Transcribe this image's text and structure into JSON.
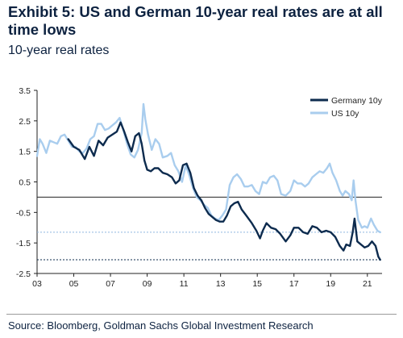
{
  "header": {
    "title": "Exhibit 5: US and German 10-year real rates are at all time lows",
    "subtitle": "10-year real rates"
  },
  "footer": {
    "source": "Source: Bloomberg, Goldman Sachs Global Investment Research"
  },
  "chart_data": {
    "type": "line",
    "title": "Exhibit 5: US and German 10-year real rates are at all time lows",
    "subtitle": "10-year real rates",
    "xlabel": "",
    "ylabel": "",
    "xlim": [
      2003.0,
      2021.8
    ],
    "ylim": [
      -2.5,
      3.5
    ],
    "x_ticks": [
      {
        "value": 2003,
        "label": "03"
      },
      {
        "value": 2005,
        "label": "05"
      },
      {
        "value": 2007,
        "label": "07"
      },
      {
        "value": 2009,
        "label": "09"
      },
      {
        "value": 2011,
        "label": "11"
      },
      {
        "value": 2013,
        "label": "13"
      },
      {
        "value": 2015,
        "label": "15"
      },
      {
        "value": 2017,
        "label": "17"
      },
      {
        "value": 2019,
        "label": "19"
      },
      {
        "value": 2021,
        "label": "21"
      }
    ],
    "y_ticks": [
      {
        "value": 3.5,
        "label": "3.5"
      },
      {
        "value": 2.5,
        "label": "2.5"
      },
      {
        "value": 1.5,
        "label": "1.5"
      },
      {
        "value": 0.5,
        "label": "0.5"
      },
      {
        "value": -0.5,
        "label": "-0.5"
      },
      {
        "value": -1.5,
        "label": "-1.5"
      },
      {
        "value": -2.5,
        "label": "-2.5"
      }
    ],
    "grid": false,
    "zero_line": 0,
    "reference_lines": [
      {
        "value": -1.15,
        "color": "#8fb8e0",
        "style": "dashed"
      },
      {
        "value": -2.05,
        "color": "#0d2b4e",
        "style": "dashed"
      }
    ],
    "legend": {
      "position": "top-right"
    },
    "series": [
      {
        "name": "Germany 10y",
        "color": "#0d2b4e",
        "points": [
          [
            2004.7,
            1.9
          ],
          [
            2005.0,
            1.65
          ],
          [
            2005.3,
            1.55
          ],
          [
            2005.6,
            1.25
          ],
          [
            2005.85,
            1.65
          ],
          [
            2006.1,
            1.35
          ],
          [
            2006.35,
            1.85
          ],
          [
            2006.6,
            1.7
          ],
          [
            2006.85,
            1.95
          ],
          [
            2007.1,
            2.05
          ],
          [
            2007.35,
            2.15
          ],
          [
            2007.55,
            2.45
          ],
          [
            2007.75,
            2.15
          ],
          [
            2007.95,
            1.8
          ],
          [
            2008.15,
            1.5
          ],
          [
            2008.35,
            2.0
          ],
          [
            2008.55,
            2.1
          ],
          [
            2008.7,
            1.75
          ],
          [
            2008.85,
            1.2
          ],
          [
            2009.0,
            0.9
          ],
          [
            2009.2,
            0.85
          ],
          [
            2009.4,
            0.95
          ],
          [
            2009.6,
            0.95
          ],
          [
            2009.85,
            0.8
          ],
          [
            2010.1,
            0.75
          ],
          [
            2010.35,
            0.65
          ],
          [
            2010.55,
            0.45
          ],
          [
            2010.75,
            0.55
          ],
          [
            2010.95,
            1.05
          ],
          [
            2011.15,
            1.1
          ],
          [
            2011.35,
            0.8
          ],
          [
            2011.55,
            0.3
          ],
          [
            2011.75,
            0.05
          ],
          [
            2011.95,
            -0.1
          ],
          [
            2012.15,
            -0.35
          ],
          [
            2012.35,
            -0.55
          ],
          [
            2012.55,
            -0.65
          ],
          [
            2012.75,
            -0.75
          ],
          [
            2012.95,
            -0.8
          ],
          [
            2013.15,
            -0.8
          ],
          [
            2013.35,
            -0.6
          ],
          [
            2013.55,
            -0.3
          ],
          [
            2013.75,
            -0.2
          ],
          [
            2013.95,
            -0.15
          ],
          [
            2014.15,
            -0.4
          ],
          [
            2014.4,
            -0.6
          ],
          [
            2014.7,
            -0.85
          ],
          [
            2014.95,
            -1.1
          ],
          [
            2015.15,
            -1.35
          ],
          [
            2015.3,
            -1.1
          ],
          [
            2015.5,
            -0.85
          ],
          [
            2015.75,
            -1.0
          ],
          [
            2016.0,
            -1.05
          ],
          [
            2016.25,
            -1.2
          ],
          [
            2016.55,
            -1.45
          ],
          [
            2016.8,
            -1.25
          ],
          [
            2017.0,
            -1.0
          ],
          [
            2017.25,
            -1.0
          ],
          [
            2017.5,
            -1.15
          ],
          [
            2017.75,
            -1.2
          ],
          [
            2018.0,
            -0.95
          ],
          [
            2018.25,
            -1.0
          ],
          [
            2018.5,
            -1.15
          ],
          [
            2018.75,
            -1.1
          ],
          [
            2019.0,
            -1.15
          ],
          [
            2019.25,
            -1.3
          ],
          [
            2019.5,
            -1.6
          ],
          [
            2019.7,
            -1.75
          ],
          [
            2019.85,
            -1.55
          ],
          [
            2020.05,
            -1.6
          ],
          [
            2020.2,
            -1.15
          ],
          [
            2020.3,
            -0.7
          ],
          [
            2020.45,
            -1.45
          ],
          [
            2020.65,
            -1.55
          ],
          [
            2020.85,
            -1.65
          ],
          [
            2021.05,
            -1.6
          ],
          [
            2021.25,
            -1.45
          ],
          [
            2021.45,
            -1.6
          ],
          [
            2021.6,
            -1.95
          ],
          [
            2021.7,
            -2.05
          ]
        ]
      },
      {
        "name": "US 10y",
        "color": "#a9cdee",
        "points": [
          [
            2003.0,
            1.35
          ],
          [
            2003.15,
            1.9
          ],
          [
            2003.3,
            1.75
          ],
          [
            2003.5,
            1.45
          ],
          [
            2003.7,
            1.85
          ],
          [
            2003.9,
            1.8
          ],
          [
            2004.1,
            1.75
          ],
          [
            2004.3,
            2.0
          ],
          [
            2004.5,
            2.05
          ],
          [
            2004.7,
            1.85
          ],
          [
            2004.9,
            1.65
          ],
          [
            2005.1,
            1.65
          ],
          [
            2005.3,
            1.5
          ],
          [
            2005.5,
            1.45
          ],
          [
            2005.7,
            1.6
          ],
          [
            2005.9,
            1.9
          ],
          [
            2006.1,
            2.0
          ],
          [
            2006.3,
            2.4
          ],
          [
            2006.5,
            2.4
          ],
          [
            2006.7,
            2.2
          ],
          [
            2006.9,
            2.25
          ],
          [
            2007.1,
            2.35
          ],
          [
            2007.3,
            2.45
          ],
          [
            2007.5,
            2.6
          ],
          [
            2007.7,
            2.2
          ],
          [
            2007.9,
            1.75
          ],
          [
            2008.1,
            1.4
          ],
          [
            2008.3,
            1.3
          ],
          [
            2008.5,
            1.55
          ],
          [
            2008.7,
            2.1
          ],
          [
            2008.8,
            3.05
          ],
          [
            2008.9,
            2.55
          ],
          [
            2009.05,
            2.05
          ],
          [
            2009.25,
            1.55
          ],
          [
            2009.45,
            1.9
          ],
          [
            2009.65,
            1.75
          ],
          [
            2009.85,
            1.3
          ],
          [
            2010.1,
            1.35
          ],
          [
            2010.3,
            1.45
          ],
          [
            2010.5,
            1.05
          ],
          [
            2010.7,
            0.85
          ],
          [
            2010.9,
            0.5
          ],
          [
            2011.1,
            1.05
          ],
          [
            2011.3,
            0.7
          ],
          [
            2011.5,
            0.3
          ],
          [
            2011.7,
            0.0
          ],
          [
            2011.9,
            -0.1
          ],
          [
            2012.1,
            -0.25
          ],
          [
            2012.3,
            -0.35
          ],
          [
            2012.5,
            -0.6
          ],
          [
            2012.7,
            -0.7
          ],
          [
            2012.9,
            -0.75
          ],
          [
            2013.1,
            -0.6
          ],
          [
            2013.3,
            -0.4
          ],
          [
            2013.5,
            0.4
          ],
          [
            2013.7,
            0.65
          ],
          [
            2013.9,
            0.75
          ],
          [
            2014.1,
            0.6
          ],
          [
            2014.3,
            0.35
          ],
          [
            2014.5,
            0.35
          ],
          [
            2014.7,
            0.4
          ],
          [
            2014.9,
            0.2
          ],
          [
            2015.1,
            0.1
          ],
          [
            2015.3,
            0.5
          ],
          [
            2015.5,
            0.45
          ],
          [
            2015.7,
            0.65
          ],
          [
            2015.9,
            0.7
          ],
          [
            2016.1,
            0.55
          ],
          [
            2016.3,
            0.1
          ],
          [
            2016.55,
            0.05
          ],
          [
            2016.8,
            0.2
          ],
          [
            2017.0,
            0.55
          ],
          [
            2017.2,
            0.45
          ],
          [
            2017.4,
            0.45
          ],
          [
            2017.6,
            0.35
          ],
          [
            2017.8,
            0.45
          ],
          [
            2018.0,
            0.65
          ],
          [
            2018.2,
            0.75
          ],
          [
            2018.4,
            0.85
          ],
          [
            2018.6,
            0.8
          ],
          [
            2018.8,
            0.95
          ],
          [
            2018.95,
            1.1
          ],
          [
            2019.1,
            0.8
          ],
          [
            2019.3,
            0.55
          ],
          [
            2019.5,
            0.2
          ],
          [
            2019.65,
            0.05
          ],
          [
            2019.8,
            0.2
          ],
          [
            2020.0,
            0.1
          ],
          [
            2020.15,
            -0.1
          ],
          [
            2020.25,
            0.55
          ],
          [
            2020.35,
            -0.1
          ],
          [
            2020.5,
            -0.75
          ],
          [
            2020.7,
            -1.0
          ],
          [
            2020.85,
            -0.95
          ],
          [
            2021.0,
            -1.0
          ],
          [
            2021.2,
            -0.7
          ],
          [
            2021.35,
            -0.9
          ],
          [
            2021.55,
            -1.1
          ],
          [
            2021.7,
            -1.15
          ]
        ]
      }
    ]
  }
}
